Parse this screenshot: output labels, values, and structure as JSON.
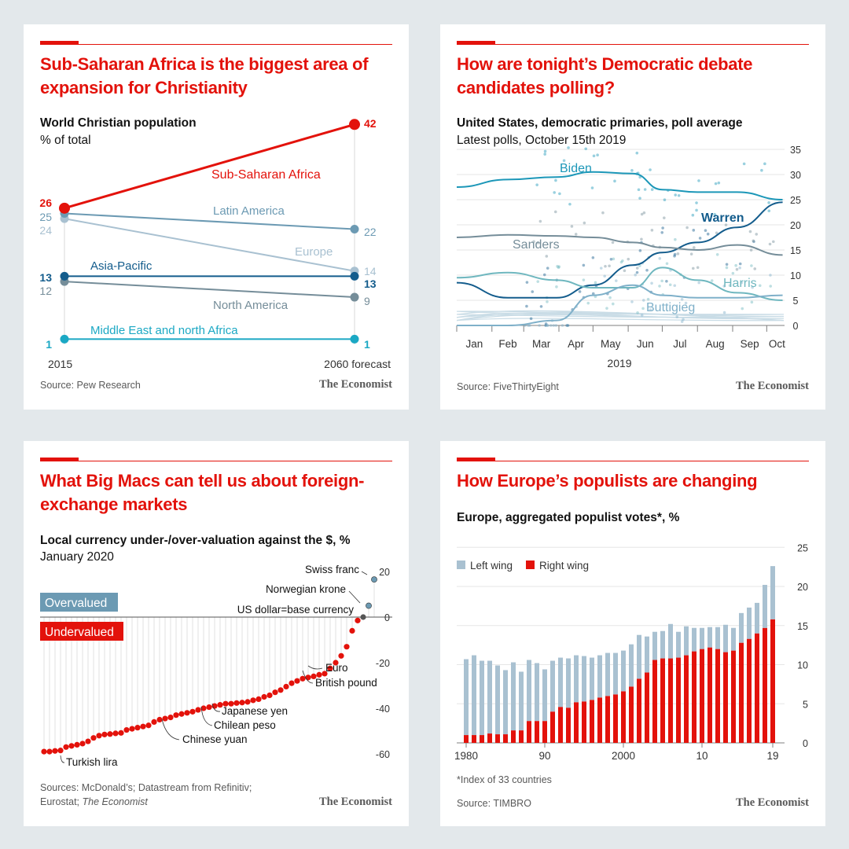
{
  "panels": {
    "christianity": {
      "title": "Sub-Saharan Africa is the biggest area of expansion for Christianity",
      "subtitle": "World Christian population",
      "subtitle2": "% of total",
      "source": "Source: Pew Research",
      "brand": "The Economist"
    },
    "polling": {
      "title": "How are tonight’s Democratic debate candidates polling?",
      "subtitle": "United States, democratic primaries, poll average",
      "subtitle2": "Latest polls, October 15th 2019",
      "source": "Source: FiveThirtyEight",
      "brand": "The Economist"
    },
    "bigmac": {
      "title": "What Big Macs can tell us about foreign-exchange markets",
      "subtitle": "Local currency under-/over-valuation against the $, %",
      "subtitle2": "January 2020",
      "source_line1": "Sources: McDonald’s; Datastream from Refinitiv;",
      "source_line2_prefix": "Eurostat; ",
      "source_line2_italic": "The Economist",
      "brand": "The Economist"
    },
    "populists": {
      "title": "How Europe’s populists are changing",
      "subtitle": "Europe, aggregated populist votes*, %",
      "footnote": "*Index of 33 countries",
      "source": "Source: TIMBRO",
      "brand": "The Economist"
    }
  },
  "chart_data": [
    {
      "type": "line",
      "x": [
        "2015",
        "2060 forecast"
      ],
      "series": [
        {
          "name": "Sub-Saharan Africa",
          "values": [
            26,
            42
          ],
          "color": "#e3120b"
        },
        {
          "name": "Latin America",
          "values": [
            25,
            22
          ],
          "color": "#6c9ab3"
        },
        {
          "name": "Europe",
          "values": [
            24,
            14
          ],
          "color": "#a9c1d1"
        },
        {
          "name": "Asia-Pacific",
          "values": [
            13,
            13
          ],
          "color": "#135c8c"
        },
        {
          "name": "North America",
          "values": [
            12,
            9
          ],
          "color": "#758d99"
        },
        {
          "name": "Middle East and north Africa",
          "values": [
            1,
            1
          ],
          "color": "#1ba8c4"
        }
      ]
    },
    {
      "type": "line",
      "xlabel": "2019",
      "x_ticks": [
        "Jan",
        "Feb",
        "Mar",
        "Apr",
        "May",
        "Jun",
        "Jul",
        "Aug",
        "Sep",
        "Oct"
      ],
      "y_ticks": [
        0,
        5,
        10,
        15,
        20,
        25,
        30,
        35
      ],
      "ylim": [
        0,
        35
      ],
      "series": [
        {
          "name": "Biden",
          "color": "#1c97b8",
          "x": [
            "Jan 1",
            "Feb 15",
            "Mar 30",
            "May 1",
            "Jun 5",
            "Jul 1",
            "Aug 1",
            "Sep 5",
            "Oct 15"
          ],
          "values": [
            27.5,
            29,
            29.5,
            30.5,
            30.2,
            27,
            26.5,
            26.5,
            25
          ]
        },
        {
          "name": "Warren",
          "color": "#135c8c",
          "x": [
            "Jan 1",
            "Feb 15",
            "Mar 30",
            "May 1",
            "Jun 5",
            "Jul 1",
            "Aug 1",
            "Sep 5",
            "Oct 15"
          ],
          "values": [
            8.5,
            5.5,
            5.5,
            8,
            12,
            14.5,
            16.5,
            19.5,
            24.5
          ]
        },
        {
          "name": "Sanders",
          "color": "#758d99",
          "x": [
            "Jan 1",
            "Feb 15",
            "Mar 30",
            "May 1",
            "Jun 5",
            "Jul 1",
            "Aug 1",
            "Sep 5",
            "Oct 15"
          ],
          "values": [
            17.5,
            18,
            17.8,
            17.5,
            16.5,
            15.5,
            15,
            16,
            14
          ]
        },
        {
          "name": "Harris",
          "color": "#6fb7bf",
          "x": [
            "Jan 1",
            "Feb 15",
            "Mar 30",
            "May 1",
            "Jun 5",
            "Jul 1",
            "Aug 1",
            "Sep 5",
            "Oct 15"
          ],
          "values": [
            9.5,
            10.5,
            9,
            7.5,
            7.5,
            11.5,
            9,
            6.5,
            5
          ]
        },
        {
          "name": "Buttigieg",
          "color": "#7fb0c9",
          "x": [
            "Jan 1",
            "Feb 15",
            "Mar 30",
            "May 1",
            "Jun 5",
            "Jul 1",
            "Aug 1",
            "Sep 5",
            "Oct 15"
          ],
          "values": [
            0,
            0,
            1,
            6,
            8,
            6,
            5.5,
            5.5,
            6
          ]
        }
      ]
    },
    {
      "type": "scatter",
      "title": "",
      "y_ticks": [
        20,
        0,
        -20,
        -40,
        -60
      ],
      "ylim": [
        -62,
        22
      ],
      "legend": [
        "Overvalued",
        "Undervalued"
      ],
      "values": [
        -59,
        -59,
        -58.7,
        -58.5,
        -57,
        -56.5,
        -56,
        -55.5,
        -54.5,
        -53,
        -52,
        -51.5,
        -51.3,
        -51,
        -50.8,
        -49.5,
        -49,
        -48.5,
        -48,
        -47.5,
        -46,
        -45,
        -44.5,
        -44,
        -43,
        -42.5,
        -42,
        -41.5,
        -40.7,
        -40,
        -39.5,
        -39,
        -38.5,
        -38,
        -38,
        -37.7,
        -37.5,
        -37.2,
        -36.5,
        -36,
        -35,
        -34.3,
        -33,
        -32,
        -30.5,
        -29,
        -28,
        -27,
        -26.5,
        -26,
        -25.3,
        -24.8,
        -22.5,
        -20,
        -17,
        -13,
        -6,
        -1.5,
        0,
        5,
        16.5
      ],
      "annotations": [
        {
          "label": "Swiss franc",
          "value": 16.5
        },
        {
          "label": "Norwegian krone",
          "value": 5
        },
        {
          "label": "US dollar=base currency",
          "value": 0
        },
        {
          "label": "Euro",
          "value": -20
        },
        {
          "label": "British pound",
          "value": -25.3
        },
        {
          "label": "Japanese yen",
          "value": -38
        },
        {
          "label": "Chilean peso",
          "value": -39
        },
        {
          "label": "Chinese yuan",
          "value": -44
        },
        {
          "label": "Turkish lira",
          "value": -59
        }
      ]
    },
    {
      "type": "bar",
      "x_ticks": [
        "1980",
        "90",
        "2000",
        "10",
        "19"
      ],
      "ylim": [
        0,
        25
      ],
      "y_ticks": [
        0,
        5,
        10,
        15,
        20,
        25
      ],
      "categories": [
        "1980",
        "1981",
        "1982",
        "1983",
        "1984",
        "1985",
        "1986",
        "1987",
        "1988",
        "1989",
        "1990",
        "1991",
        "1992",
        "1993",
        "1994",
        "1995",
        "1996",
        "1997",
        "1998",
        "1999",
        "2000",
        "2001",
        "2002",
        "2003",
        "2004",
        "2005",
        "2006",
        "2007",
        "2008",
        "2009",
        "2010",
        "2011",
        "2012",
        "2013",
        "2014",
        "2015",
        "2016",
        "2017",
        "2018",
        "2019"
      ],
      "series": [
        {
          "name": "Left wing",
          "color": "#a9c1d1",
          "values": [
            9.7,
            10.2,
            9.5,
            9.3,
            8.8,
            8.2,
            8.7,
            7.5,
            7.8,
            7.4,
            6.6,
            6.5,
            6.3,
            6.3,
            6.0,
            5.8,
            5.4,
            5.4,
            5.5,
            5.3,
            5.2,
            5.4,
            5.6,
            4.6,
            3.6,
            3.5,
            4.4,
            3.3,
            3.7,
            3.0,
            2.7,
            2.6,
            2.8,
            3.5,
            2.9,
            3.8,
            4.0,
            3.9,
            5.5,
            6.8
          ]
        },
        {
          "name": "Right wing",
          "color": "#e3120b",
          "values": [
            1.0,
            1.0,
            1.0,
            1.2,
            1.1,
            1.1,
            1.6,
            1.6,
            2.8,
            2.8,
            2.8,
            4.0,
            4.6,
            4.5,
            5.2,
            5.3,
            5.5,
            5.8,
            6.0,
            6.2,
            6.6,
            7.2,
            8.2,
            9.0,
            10.6,
            10.8,
            10.8,
            10.9,
            11.2,
            11.7,
            12.0,
            12.2,
            12.0,
            11.6,
            11.8,
            12.8,
            13.3,
            14.0,
            14.7,
            15.8
          ]
        }
      ]
    }
  ]
}
